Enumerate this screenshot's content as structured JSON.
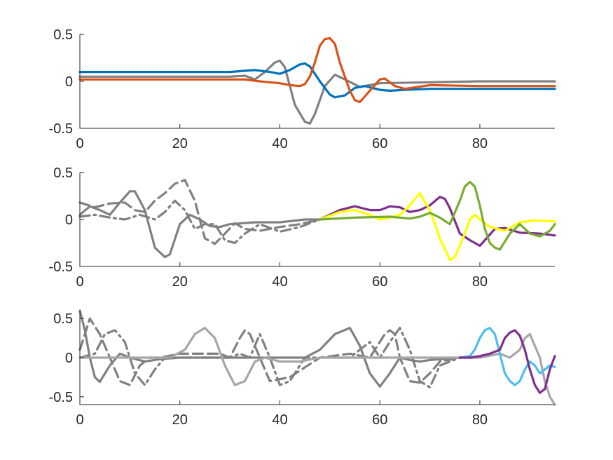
{
  "chart_data": [
    {
      "type": "line",
      "xlim": [
        0,
        95
      ],
      "ylim": [
        -0.5,
        0.5
      ],
      "xticks": [
        "0",
        "20",
        "40",
        "60",
        "80"
      ],
      "yticks": [
        "-0.5",
        "0",
        "0.5"
      ],
      "series": [
        {
          "color": "#808080",
          "style": "solid",
          "x": [
            0,
            10,
            20,
            30,
            33,
            35,
            37,
            39,
            40,
            41,
            43,
            45,
            46,
            47,
            49,
            51,
            53,
            56,
            60,
            70,
            80,
            95
          ],
          "y": [
            0.05,
            0.05,
            0.05,
            0.05,
            0.06,
            0.02,
            0.1,
            0.2,
            0.22,
            0.15,
            -0.25,
            -0.43,
            -0.45,
            -0.35,
            -0.05,
            0.07,
            0.02,
            -0.06,
            -0.02,
            -0.01,
            0.0,
            0.0
          ]
        },
        {
          "color": "#0072BD",
          "style": "solid",
          "x": [
            0,
            10,
            20,
            30,
            35,
            38,
            40,
            42,
            44,
            45,
            46,
            48,
            50,
            51,
            53,
            55,
            57,
            60,
            62,
            65,
            70,
            80,
            95
          ],
          "y": [
            0.1,
            0.1,
            0.1,
            0.1,
            0.12,
            0.1,
            0.08,
            0.12,
            0.18,
            0.19,
            0.16,
            0.0,
            -0.14,
            -0.17,
            -0.15,
            -0.07,
            -0.05,
            -0.09,
            -0.1,
            -0.09,
            -0.08,
            -0.08,
            -0.08
          ]
        },
        {
          "color": "#D95319",
          "style": "solid",
          "x": [
            0,
            10,
            20,
            30,
            33,
            36,
            40,
            42,
            44,
            45,
            46,
            47,
            48,
            49,
            50,
            51,
            52,
            54,
            55,
            56,
            58,
            60,
            61,
            63,
            65,
            70,
            80,
            95
          ],
          "y": [
            0.02,
            0.02,
            0.02,
            0.02,
            0.02,
            0.0,
            -0.02,
            -0.04,
            -0.05,
            -0.03,
            0.05,
            0.2,
            0.38,
            0.45,
            0.46,
            0.4,
            0.2,
            -0.1,
            -0.2,
            -0.22,
            -0.1,
            0.02,
            0.03,
            -0.05,
            -0.08,
            -0.04,
            -0.05,
            -0.05
          ]
        }
      ]
    },
    {
      "type": "line",
      "xlim": [
        0,
        95
      ],
      "ylim": [
        -0.5,
        0.5
      ],
      "xticks": [
        "0",
        "20",
        "40",
        "60",
        "80"
      ],
      "yticks": [
        "-0.5",
        "0",
        "0.5"
      ],
      "series": [
        {
          "color": "#808080",
          "style": "solid",
          "x": [
            0,
            2,
            4,
            6,
            8,
            10,
            11,
            13,
            15,
            17,
            18,
            20,
            22,
            24,
            26,
            28,
            30,
            35,
            40,
            45,
            48
          ],
          "y": [
            0.05,
            0.14,
            0.1,
            0.05,
            0.18,
            0.3,
            0.3,
            0.1,
            -0.3,
            -0.4,
            -0.37,
            -0.05,
            0.05,
            0.0,
            -0.07,
            -0.08,
            -0.05,
            -0.03,
            -0.03,
            0.0,
            0.0
          ]
        },
        {
          "color": "#808080",
          "style": "dash",
          "x": [
            0,
            3,
            6,
            9,
            11,
            13,
            15,
            17,
            19,
            21,
            23,
            25,
            27,
            29,
            31,
            33,
            36,
            40,
            44,
            48
          ],
          "y": [
            0.18,
            0.13,
            0.17,
            0.18,
            0.1,
            0.08,
            0.2,
            0.28,
            0.38,
            0.42,
            0.2,
            -0.2,
            -0.26,
            -0.15,
            -0.04,
            -0.1,
            -0.12,
            -0.08,
            -0.05,
            0.0
          ]
        },
        {
          "color": "#808080",
          "style": "dashdot",
          "x": [
            0,
            3,
            6,
            9,
            12,
            15,
            17,
            19,
            21,
            23,
            25,
            27,
            29,
            31,
            33,
            36,
            40,
            44,
            48
          ],
          "y": [
            0.03,
            0.05,
            0.02,
            0.0,
            0.05,
            0.0,
            0.08,
            0.2,
            0.1,
            -0.1,
            -0.05,
            -0.05,
            -0.22,
            -0.25,
            -0.15,
            -0.05,
            -0.13,
            -0.08,
            0.0
          ]
        },
        {
          "color": "#7E2F8E",
          "style": "solid",
          "x": [
            48,
            52,
            55,
            58,
            60,
            62,
            64,
            66,
            68,
            70,
            72,
            73,
            74,
            76,
            78,
            80,
            81,
            83,
            85,
            88,
            92,
            95
          ],
          "y": [
            0.0,
            0.1,
            0.14,
            0.1,
            0.1,
            0.14,
            0.13,
            0.08,
            0.1,
            0.15,
            0.24,
            0.22,
            0.12,
            -0.15,
            -0.22,
            -0.28,
            -0.22,
            -0.1,
            -0.09,
            -0.14,
            -0.15,
            -0.17
          ]
        },
        {
          "color": "#FFFF00",
          "style": "solid",
          "x": [
            48,
            52,
            55,
            58,
            60,
            62,
            64,
            66,
            67,
            68,
            70,
            72,
            74,
            75,
            77,
            78,
            79,
            80,
            82,
            85,
            88,
            91,
            95
          ],
          "y": [
            0.0,
            0.08,
            0.1,
            0.05,
            0.0,
            0.02,
            0.05,
            0.15,
            0.22,
            0.28,
            0.1,
            -0.2,
            -0.43,
            -0.4,
            -0.15,
            0.0,
            0.05,
            0.0,
            -0.08,
            -0.12,
            -0.03,
            -0.01,
            -0.02
          ]
        },
        {
          "color": "#77AC30",
          "style": "solid",
          "x": [
            48,
            55,
            62,
            66,
            68,
            70,
            72,
            74,
            76,
            77,
            78,
            79,
            80,
            81,
            82,
            83,
            84,
            86,
            88,
            90,
            92,
            94,
            95
          ],
          "y": [
            0.0,
            0.02,
            0.03,
            0.01,
            0.03,
            0.07,
            0.02,
            -0.05,
            0.2,
            0.35,
            0.4,
            0.35,
            0.15,
            -0.1,
            -0.25,
            -0.3,
            -0.32,
            -0.15,
            -0.05,
            -0.15,
            -0.18,
            -0.12,
            -0.05
          ]
        }
      ]
    },
    {
      "type": "line",
      "xlim": [
        0,
        95
      ],
      "ylim": [
        -0.6,
        0.6
      ],
      "xticks": [
        "0",
        "20",
        "40",
        "60",
        "80"
      ],
      "yticks": [
        "-0.5",
        "0",
        "0.5"
      ],
      "series": [
        {
          "color": "#808080",
          "style": "solid",
          "x": [
            0,
            1,
            2,
            3,
            4,
            6,
            8,
            10,
            13,
            16,
            20,
            28,
            38,
            45,
            48,
            51,
            54,
            56,
            58,
            60,
            62,
            64,
            66,
            68,
            70,
            74,
            76
          ],
          "y": [
            0.6,
            0.35,
            0.0,
            -0.25,
            -0.31,
            -0.1,
            0.05,
            0.0,
            -0.05,
            -0.02,
            0.0,
            0.0,
            0.0,
            0.0,
            0.1,
            0.3,
            0.38,
            0.15,
            -0.2,
            -0.37,
            -0.2,
            0.0,
            -0.03,
            -0.05,
            -0.03,
            -0.01,
            0.0
          ]
        },
        {
          "color": "#808080",
          "style": "dash",
          "x": [
            0,
            2,
            4,
            6,
            8,
            10,
            12,
            14,
            16,
            20,
            24,
            28,
            30,
            32,
            33,
            34,
            36,
            38,
            42,
            48,
            54,
            58,
            61,
            62,
            63,
            64,
            66,
            68,
            70,
            72,
            76
          ],
          "y": [
            0.1,
            0.5,
            0.3,
            0.0,
            -0.3,
            -0.35,
            -0.1,
            0.0,
            0.0,
            0.05,
            0.05,
            0.05,
            0.0,
            0.25,
            0.35,
            0.3,
            0.0,
            -0.3,
            -0.25,
            0.0,
            0.05,
            0.0,
            0.3,
            0.35,
            0.3,
            0.0,
            -0.3,
            -0.32,
            -0.2,
            -0.05,
            0.0
          ]
        },
        {
          "color": "#808080",
          "style": "dashdot",
          "x": [
            0,
            3,
            5,
            7,
            9,
            11,
            13,
            15,
            17,
            20,
            30,
            32,
            34,
            36,
            38,
            40,
            42,
            45,
            54,
            56,
            58,
            60,
            62,
            64,
            66,
            68,
            70,
            72,
            76
          ],
          "y": [
            0.0,
            0.05,
            0.3,
            0.35,
            0.2,
            -0.2,
            -0.35,
            -0.15,
            0.0,
            0.0,
            0.0,
            0.05,
            0.0,
            0.3,
            0.0,
            -0.35,
            -0.3,
            0.0,
            0.0,
            0.1,
            0.2,
            0.0,
            0.2,
            0.38,
            0.1,
            -0.3,
            -0.38,
            -0.1,
            0.0
          ]
        },
        {
          "color": "#A6A6A6",
          "style": "solid",
          "x": [
            0,
            10,
            18,
            21,
            23,
            25,
            27,
            29,
            31,
            33,
            35,
            37,
            40,
            44,
            48,
            60,
            70,
            76,
            80,
            84,
            86,
            88,
            89,
            90,
            92,
            93,
            94,
            95
          ],
          "y": [
            0.0,
            0.0,
            0.0,
            0.1,
            0.3,
            0.38,
            0.25,
            -0.1,
            -0.35,
            -0.3,
            -0.05,
            0.0,
            -0.05,
            -0.05,
            0.0,
            0.0,
            0.0,
            0.0,
            0.0,
            0.05,
            0.0,
            0.1,
            0.25,
            0.3,
            0.0,
            -0.3,
            -0.5,
            -0.6
          ]
        },
        {
          "color": "#4DBEEE",
          "style": "solid",
          "x": [
            76,
            78,
            79,
            80,
            81,
            82,
            83,
            84,
            85,
            86,
            87,
            88,
            89,
            90,
            91,
            92,
            93,
            94,
            95
          ],
          "y": [
            0.0,
            0.02,
            0.1,
            0.25,
            0.35,
            0.38,
            0.3,
            0.05,
            -0.2,
            -0.3,
            -0.35,
            -0.3,
            -0.15,
            -0.05,
            -0.1,
            -0.2,
            -0.15,
            -0.1,
            -0.12
          ]
        },
        {
          "color": "#7E2F8E",
          "style": "solid",
          "x": [
            76,
            78,
            80,
            82,
            84,
            85,
            86,
            87,
            88,
            89,
            90,
            91,
            92,
            93,
            94,
            95
          ],
          "y": [
            0.0,
            0.0,
            0.02,
            0.05,
            0.1,
            0.25,
            0.32,
            0.35,
            0.28,
            0.1,
            -0.15,
            -0.35,
            -0.45,
            -0.4,
            -0.15,
            0.02
          ]
        }
      ]
    }
  ]
}
